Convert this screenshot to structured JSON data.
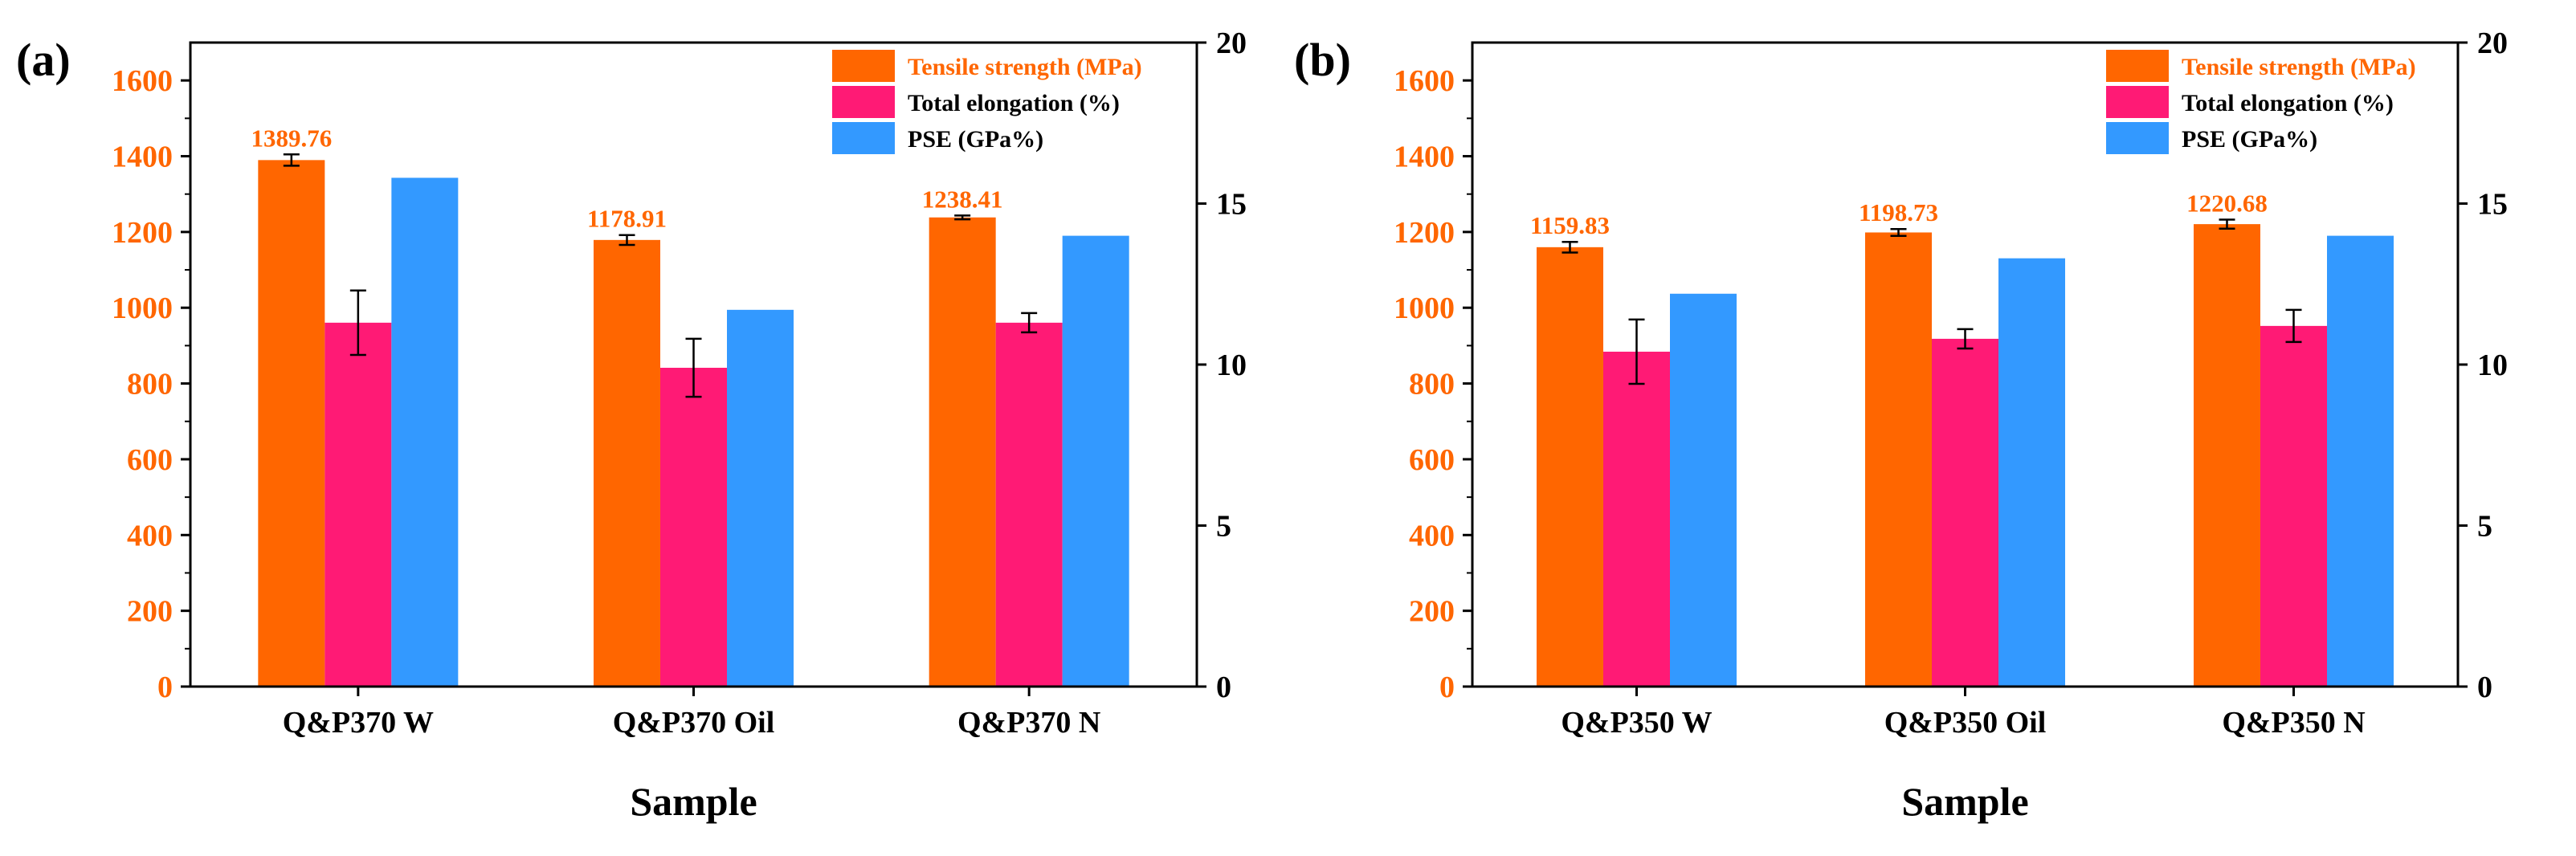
{
  "colors": {
    "tensile": "#FF6600",
    "elongation": "#FF1A75",
    "pse": "#3399FF",
    "left_axis": "#FF6600",
    "frame": "#000000"
  },
  "chart_data": [
    {
      "type": "bar",
      "panel_label": "(a)",
      "xlabel": "Sample",
      "ylabel_left": "",
      "ylabel_right": "",
      "left_axis": {
        "ylim": [
          0,
          1700
        ],
        "ticks": [
          0,
          200,
          400,
          600,
          800,
          1000,
          1200,
          1400,
          1600
        ],
        "tick_labels": [
          "0",
          "200",
          "400",
          "600",
          "800",
          "1000",
          "1200",
          "1400",
          "1600"
        ]
      },
      "right_axis": {
        "ylim": [
          0,
          20
        ],
        "ticks": [
          0,
          5,
          10,
          15,
          20
        ],
        "tick_labels": [
          "0",
          "5",
          "10",
          "15",
          "20"
        ]
      },
      "categories": [
        "Q&P370 W",
        "Q&P370 Oil",
        "Q&P370 N"
      ],
      "legend_position": "top-right",
      "series": [
        {
          "name": "Tensile strength (MPa)",
          "axis": "left",
          "color": "#FF6600",
          "values": [
            1389.76,
            1178.91,
            1238.41
          ],
          "errors": [
            15,
            13,
            5
          ],
          "value_labels": [
            "1389.76",
            "1178.91",
            "1238.41"
          ]
        },
        {
          "name": "Total elongation (%)",
          "axis": "right",
          "color": "#FF1A75",
          "values": [
            11.3,
            9.9,
            11.3
          ],
          "errors": [
            1.0,
            0.9,
            0.3
          ]
        },
        {
          "name": "PSE (GPa%)",
          "axis": "right",
          "color": "#3399FF",
          "values": [
            15.8,
            11.7,
            14.0
          ],
          "errors": [
            0,
            0,
            0
          ]
        }
      ]
    },
    {
      "type": "bar",
      "panel_label": "(b)",
      "xlabel": "Sample",
      "ylabel_left": "",
      "ylabel_right": "",
      "left_axis": {
        "ylim": [
          0,
          1700
        ],
        "ticks": [
          0,
          200,
          400,
          600,
          800,
          1000,
          1200,
          1400,
          1600
        ],
        "tick_labels": [
          "0",
          "200",
          "400",
          "600",
          "800",
          "1000",
          "1200",
          "1400",
          "1600"
        ]
      },
      "right_axis": {
        "ylim": [
          0,
          20
        ],
        "ticks": [
          0,
          5,
          10,
          15,
          20
        ],
        "tick_labels": [
          "0",
          "5",
          "10",
          "15",
          "20"
        ]
      },
      "categories": [
        "Q&P350 W",
        "Q&P350 Oil",
        "Q&P350 N"
      ],
      "legend_position": "top-right",
      "series": [
        {
          "name": "Tensile strength (MPa)",
          "axis": "left",
          "color": "#FF6600",
          "values": [
            1159.83,
            1198.73,
            1220.68
          ],
          "errors": [
            14,
            9,
            12
          ],
          "value_labels": [
            "1159.83",
            "1198.73",
            "1220.68"
          ]
        },
        {
          "name": "Total elongation (%)",
          "axis": "right",
          "color": "#FF1A75",
          "values": [
            10.4,
            10.8,
            11.2
          ],
          "errors": [
            1.0,
            0.3,
            0.5
          ]
        },
        {
          "name": "PSE (GPa%)",
          "axis": "right",
          "color": "#3399FF",
          "values": [
            12.2,
            13.3,
            14.0
          ],
          "errors": [
            0,
            0,
            0
          ]
        }
      ]
    }
  ]
}
